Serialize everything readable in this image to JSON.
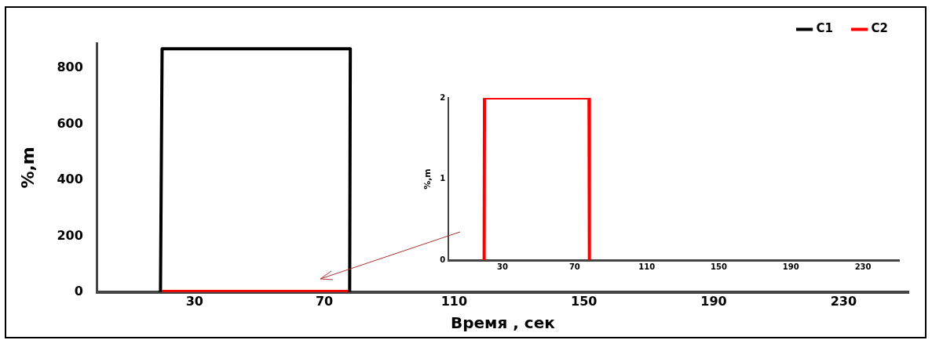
{
  "chart_data": [
    {
      "type": "line",
      "xlabel": "Время , сек",
      "ylabel": "%,m",
      "xlim": [
        0,
        250
      ],
      "xticks": [
        30,
        70,
        110,
        150,
        190,
        230
      ],
      "ylim": [
        0,
        890
      ],
      "yticks": [
        0,
        200,
        400,
        600,
        800
      ],
      "grid": false,
      "legend": "top right",
      "marker": "none",
      "series": [
        {
          "name": "C1",
          "color": "#000000",
          "x": [
            19.5,
            20,
            78,
            77.8
          ],
          "values": [
            0,
            870,
            870,
            0
          ]
        },
        {
          "name": "C2",
          "color": "#ff0000",
          "x": [
            20,
            78
          ],
          "values": [
            2,
            2
          ]
        }
      ]
    },
    {
      "type": "line",
      "ylabel": "%,m",
      "xlim": [
        0,
        250
      ],
      "xticks": [
        30,
        70,
        110,
        150,
        190,
        230
      ],
      "ylim": [
        0,
        2
      ],
      "yticks": [
        0,
        1,
        2
      ],
      "grid": false,
      "marker": "none",
      "series": [
        {
          "color": "#ff0000",
          "x": [
            19.8,
            20,
            78,
            78.2
          ],
          "values": [
            0,
            2,
            2,
            0
          ]
        }
      ]
    }
  ]
}
